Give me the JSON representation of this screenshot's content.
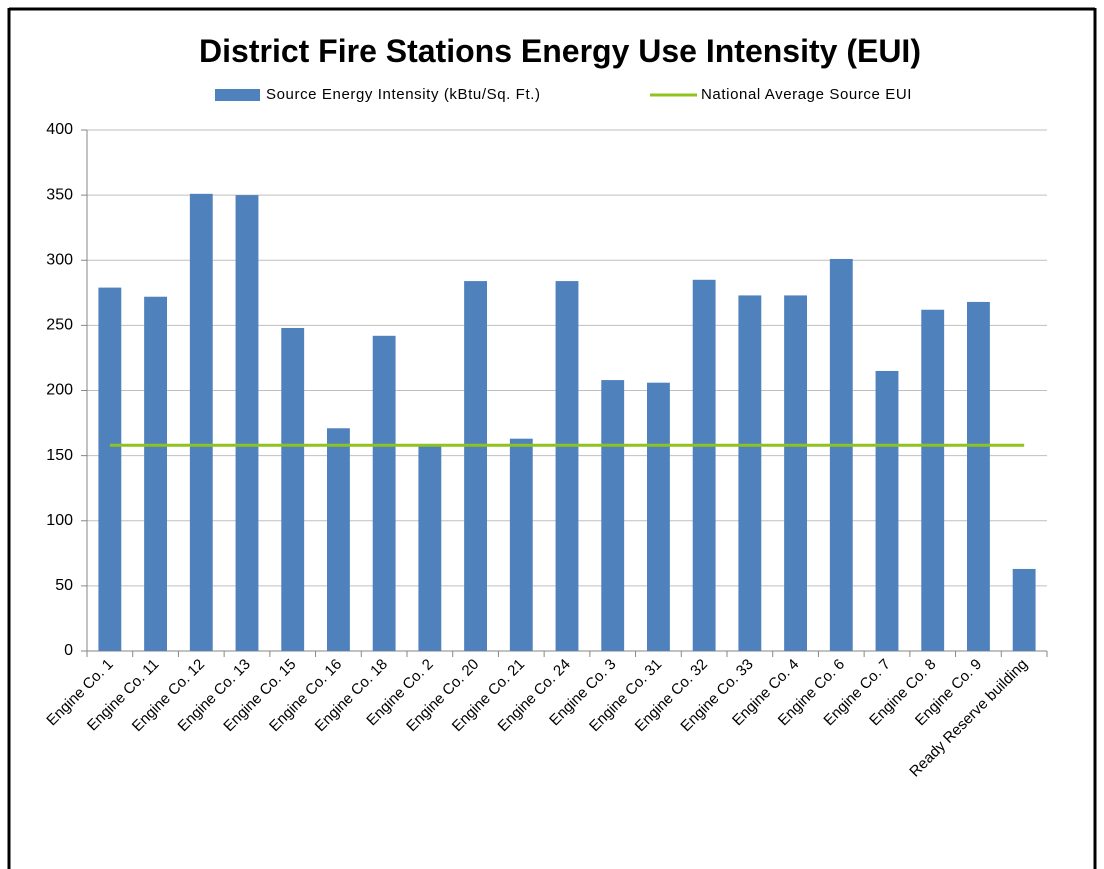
{
  "chart_data": {
    "type": "bar",
    "title": "District Fire Stations Energy Use Intensity (EUI)",
    "categories": [
      "Engine Co. 1",
      "Engine Co. 11",
      "Engine Co. 12",
      "Engine Co. 13",
      "Engine Co. 15",
      "Engine Co. 16",
      "Engine Co. 18",
      "Engine Co. 2",
      "Engine Co. 20",
      "Engine Co. 21",
      "Engine Co. 24",
      "Engine Co. 3",
      "Engine Co. 31",
      "Engine Co. 32",
      "Engine Co. 33",
      "Engine Co. 4",
      "Engine Co. 6",
      "Engine Co. 7",
      "Engine Co. 8",
      "Engine Co. 9",
      "Ready Reserve building"
    ],
    "series": [
      {
        "name": "Source Energy Intensity (kBtu/Sq. Ft.)",
        "type": "bar",
        "color": "#4f81bd",
        "values": [
          279,
          272,
          351,
          350,
          248,
          171,
          242,
          158,
          284,
          163,
          284,
          208,
          206,
          285,
          273,
          273,
          301,
          215,
          262,
          268,
          63
        ]
      },
      {
        "name": "National Average Source EUI",
        "type": "line",
        "color": "#8fc31f",
        "values": [
          158,
          158,
          158,
          158,
          158,
          158,
          158,
          158,
          158,
          158,
          158,
          158,
          158,
          158,
          158,
          158,
          158,
          158,
          158,
          158,
          158
        ]
      }
    ],
    "ylim": [
      0,
      400
    ],
    "yticks": [
      0,
      50,
      100,
      150,
      200,
      250,
      300,
      350,
      400
    ],
    "grid": true,
    "legend": "top"
  }
}
